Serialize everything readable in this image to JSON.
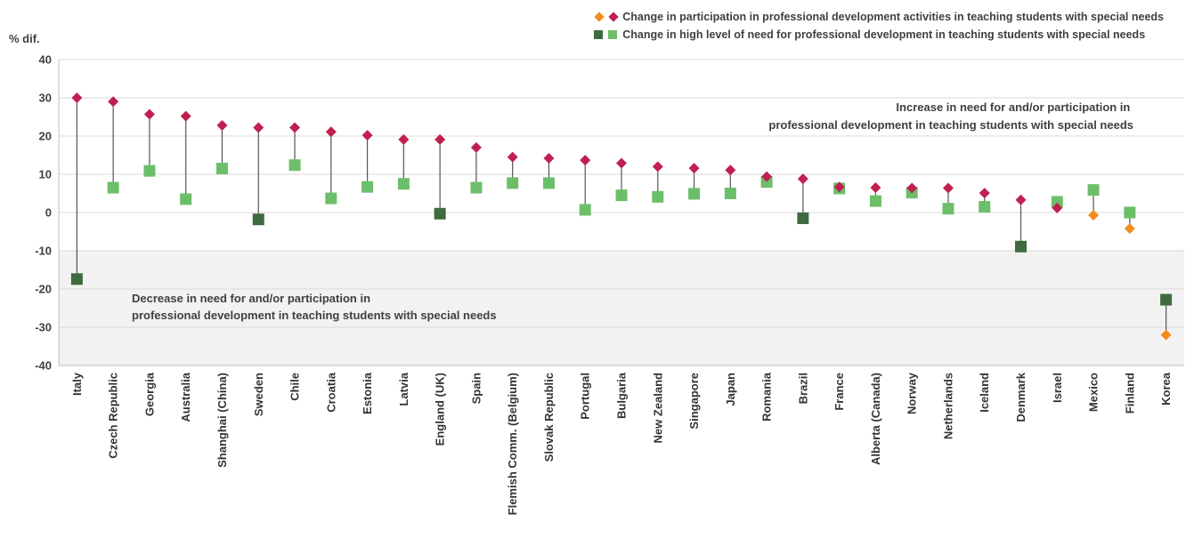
{
  "colors": {
    "participation_pos": "#C0204F",
    "participation_neg": "#F28C1E",
    "need_pos": "#6DBE6A",
    "need_neg": "#3E6B3E",
    "stem": "#555555",
    "band": "#F2F2F2",
    "axis": "#BFBFBF"
  },
  "legend": {
    "participation": "Change in participation in professional development activities in teaching students with special needs",
    "need": "Change in high level of need for professional development in teaching students with special needs"
  },
  "chart_data": {
    "type": "scatter",
    "ylabel": "% dif.",
    "ylim": [
      -40,
      40
    ],
    "yticks": [
      40,
      30,
      20,
      10,
      0,
      -10,
      -20,
      -30,
      -40
    ],
    "shaded_band": [
      -40,
      -10
    ],
    "annotation_increase": [
      "Increase in need for and/or participation in",
      "professional development in teaching students with special needs"
    ],
    "annotation_decrease": [
      "Decrease in need for and/or participation in",
      "professional development in teaching students with special needs"
    ],
    "categories": [
      "Italy",
      "Czech Republic",
      "Georgia",
      "Australia",
      "Shanghai (China)",
      "Sweden",
      "Chile",
      "Croatia",
      "Estonia",
      "Latvia",
      "England (UK)",
      "Spain",
      "Flemish Comm. (Belgium)",
      "Slovak Republic",
      "Portugal",
      "Bulgaria",
      "New Zealand",
      "Singapore",
      "Japan",
      "Romania",
      "Brazil",
      "France",
      "Alberta (Canada)",
      "Norway",
      "Netherlands",
      "Iceland",
      "Denmark",
      "Israel",
      "Mexico",
      "Finland",
      "Korea"
    ],
    "series": [
      {
        "name": "Change in participation in professional development activities in teaching students with special needs",
        "marker": "diamond",
        "values": [
          30,
          29,
          25.7,
          25.2,
          22.8,
          22.2,
          22.2,
          21.1,
          20.2,
          19.1,
          19.1,
          17,
          14.5,
          14.2,
          13.7,
          12.9,
          12,
          11.6,
          11.1,
          9.4,
          8.8,
          6.7,
          6.5,
          6.4,
          6.4,
          5.1,
          3.3,
          1.2,
          -0.7,
          -4.2,
          -32
        ]
      },
      {
        "name": "Change in high level of need for professional development in teaching students with special needs",
        "marker": "square",
        "values": [
          -17.4,
          6.5,
          10.9,
          3.5,
          11.5,
          -1.8,
          12.4,
          3.7,
          6.7,
          7.5,
          -0.3,
          6.5,
          7.7,
          7.7,
          0.7,
          4.5,
          4.1,
          4.9,
          5,
          8,
          -1.5,
          6.3,
          3,
          5.2,
          1,
          1.5,
          -8.9,
          2.8,
          5.9,
          0,
          -22.8
        ]
      }
    ]
  }
}
